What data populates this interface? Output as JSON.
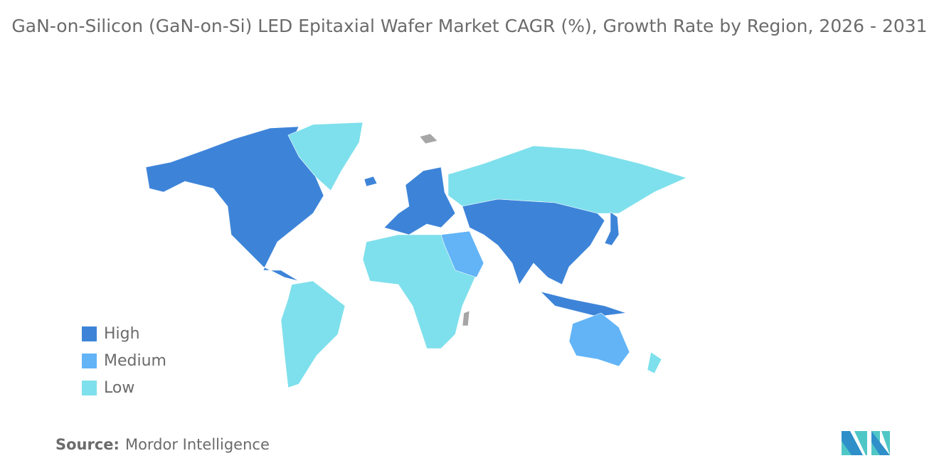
{
  "title": "GaN-on-Silicon (GaN-on-Si) LED Epitaxial Wafer Market CAGR (%), Growth Rate by Region, 2026 - 2031",
  "legend": [
    {
      "label": "High",
      "color": "#3d84d9"
    },
    {
      "label": "Medium",
      "color": "#62b4f6"
    },
    {
      "label": "Low",
      "color": "#7ee0ec"
    }
  ],
  "no_data_color": "#a6a6a6",
  "regions": {
    "north_america": "High",
    "greenland": "Low",
    "south_america": "Low",
    "europe": "High",
    "africa": "Low",
    "middle_east": "Medium",
    "russia": "Low",
    "asia": "High",
    "japan": "High",
    "southeast_asia_islands": "High",
    "australia": "Medium",
    "new_zealand": "Low"
  },
  "source": {
    "label": "Source:",
    "value": "Mordor Intelligence"
  }
}
